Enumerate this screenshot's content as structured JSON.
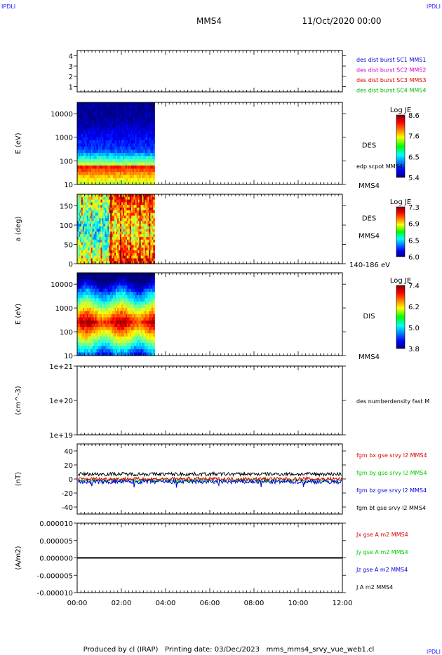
{
  "corner_labels": {
    "top_left": "IPDLI",
    "top_right": "IPDLI",
    "bottom_right": "IPDLI"
  },
  "header": {
    "spacecraft": "MMS4",
    "date": "11/Oct/2020 00:00"
  },
  "footer": "Produced by cl (IRAP)   Printing date: 03/Dec/2023   mms_mms4_srvy_vue_web1.cl",
  "colors": {
    "mms1": "#0000cc",
    "mms2": "#cc00cc",
    "mms3": "#dd0000",
    "mms4": "#00bb00",
    "bx": "#dd0000",
    "by": "#00cc00",
    "bz": "#0000dd",
    "bt": "#000000"
  },
  "chart_data": {
    "type": "timeseries-stack",
    "time_range": [
      "00:00",
      "12:00"
    ],
    "x_ticks": [
      "00:00",
      "02:00",
      "04:00",
      "06:00",
      "08:00",
      "10:00",
      "12:00"
    ],
    "data_end": "03:30",
    "panels": [
      {
        "id": "availability",
        "ylabel": "",
        "ylim": [
          0.5,
          4.5
        ],
        "y_ticks": [
          "4",
          "3",
          "2",
          "1"
        ],
        "legend": [
          "des dist burst SC1 MMS1",
          "des dist burst SC2 MMS2",
          "des dist burst SC3 MMS3",
          "des dist burst SC4 MMS4"
        ]
      },
      {
        "id": "des-energy",
        "type": "heatmap",
        "ylabel": "E (eV)",
        "yscale": "log",
        "ylim": [
          10,
          30000
        ],
        "y_ticks": [
          "10000",
          "1000",
          "100",
          "10"
        ],
        "instrument": "DES",
        "spacecraft": "MMS4",
        "overlay": "edp scpot MMS4",
        "colorbar": {
          "title": "Log JE",
          "ticks": [
            "8.6",
            "7.6",
            "6.5",
            "5.4"
          ],
          "range": [
            5.4,
            8.6
          ]
        }
      },
      {
        "id": "des-pitch",
        "type": "heatmap",
        "ylabel": "a (deg)",
        "ylim": [
          0,
          180
        ],
        "y_ticks": [
          "150",
          "100",
          "50",
          "0"
        ],
        "instrument": "DES",
        "spacecraft": "MMS4",
        "energy_band": "140-186 eV",
        "colorbar": {
          "title": "Log JE",
          "ticks": [
            "7.3",
            "6.9",
            "6.5",
            "6.0"
          ],
          "range": [
            6.0,
            7.3
          ]
        }
      },
      {
        "id": "dis-energy",
        "type": "heatmap",
        "ylabel": "E (eV)",
        "yscale": "log",
        "ylim": [
          10,
          30000
        ],
        "y_ticks": [
          "10000",
          "1000",
          "100",
          "10"
        ],
        "instrument": "DIS",
        "spacecraft": "MMS4",
        "colorbar": {
          "title": "Log JE",
          "ticks": [
            "7.4",
            "6.2",
            "5.0",
            "3.8"
          ],
          "range": [
            3.8,
            7.4
          ]
        }
      },
      {
        "id": "density",
        "ylabel": "(cm^-3)",
        "yscale": "log",
        "ylim": [
          1e+19,
          1e+21
        ],
        "y_ticks": [
          "1e+21",
          "1e+20",
          "1e+19"
        ],
        "legend": [
          "des numberdensity fast M"
        ]
      },
      {
        "id": "fgm",
        "type": "line",
        "ylabel": "(nT)",
        "ylim": [
          -50,
          50
        ],
        "y_ticks": [
          "40",
          "20",
          "0",
          "-20",
          "-40"
        ],
        "legend": [
          "fgm bx gse srvy l2 MMS4",
          "fgm by gse srvy l2 MMS4",
          "fgm bz gse srvy l2 MMS4",
          "fgm bt gse srvy l2 MMS4"
        ],
        "series": [
          {
            "name": "fgm bx gse srvy l2 MMS4",
            "mean": 0,
            "noise": 2.5
          },
          {
            "name": "fgm by gse srvy l2 MMS4",
            "mean": -2,
            "noise": 2.5
          },
          {
            "name": "fgm bz gse srvy l2 MMS4",
            "mean": -4,
            "noise": 3
          },
          {
            "name": "fgm bt gse srvy l2 MMS4",
            "mean": 7,
            "noise": 2.5
          }
        ]
      },
      {
        "id": "current",
        "type": "line",
        "ylabel": "(A/m2)",
        "ylim": [
          -1e-05,
          1e-05
        ],
        "y_ticks": [
          "0.000010",
          "0.000005",
          "0.000000",
          "-0.000005",
          "-0.000010"
        ],
        "legend": [
          "Jx gse A m2 MMS4",
          "Jy gse A m2 MMS4",
          "Jz gse A m2 MMS4",
          "J A m2 MMS4"
        ],
        "series": [
          {
            "name": "J A m2 MMS4",
            "value": 0
          }
        ]
      }
    ]
  }
}
